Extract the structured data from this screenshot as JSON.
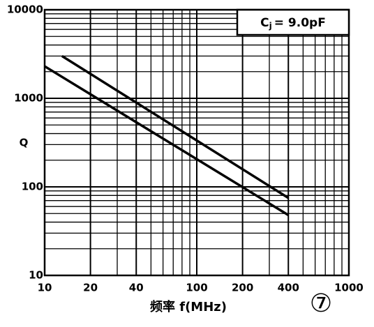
{
  "chart_data": {
    "type": "line",
    "ylabel": "Q",
    "xlabel": "频率 f(MHz)",
    "annotation": {
      "symbol": "C",
      "subscript": "j",
      "text": "= 9.0pF"
    },
    "figure_number": "⑦",
    "log_x": true,
    "log_y": true,
    "grid": true,
    "color": "#000000",
    "xlim": [
      10,
      1000
    ],
    "ylim": [
      10,
      10000
    ],
    "xticks": [
      10,
      20,
      40,
      100,
      200,
      400,
      1000
    ],
    "yticks": [
      10,
      100,
      1000,
      10000
    ],
    "x_minor_grid": [
      30,
      50,
      60,
      70,
      80,
      90,
      300,
      500,
      600,
      700,
      800,
      900
    ],
    "y_minor_grid": [
      20,
      30,
      40,
      50,
      60,
      70,
      80,
      90,
      200,
      300,
      400,
      500,
      600,
      700,
      800,
      900,
      2000,
      3000,
      4000,
      5000,
      6000,
      7000,
      8000,
      9000
    ],
    "series": [
      {
        "color": "#000000",
        "x": [
          13,
          400
        ],
        "values": [
          3000,
          75
        ]
      },
      {
        "color": "#000000",
        "x": [
          10,
          400
        ],
        "values": [
          2300,
          48
        ]
      }
    ]
  }
}
